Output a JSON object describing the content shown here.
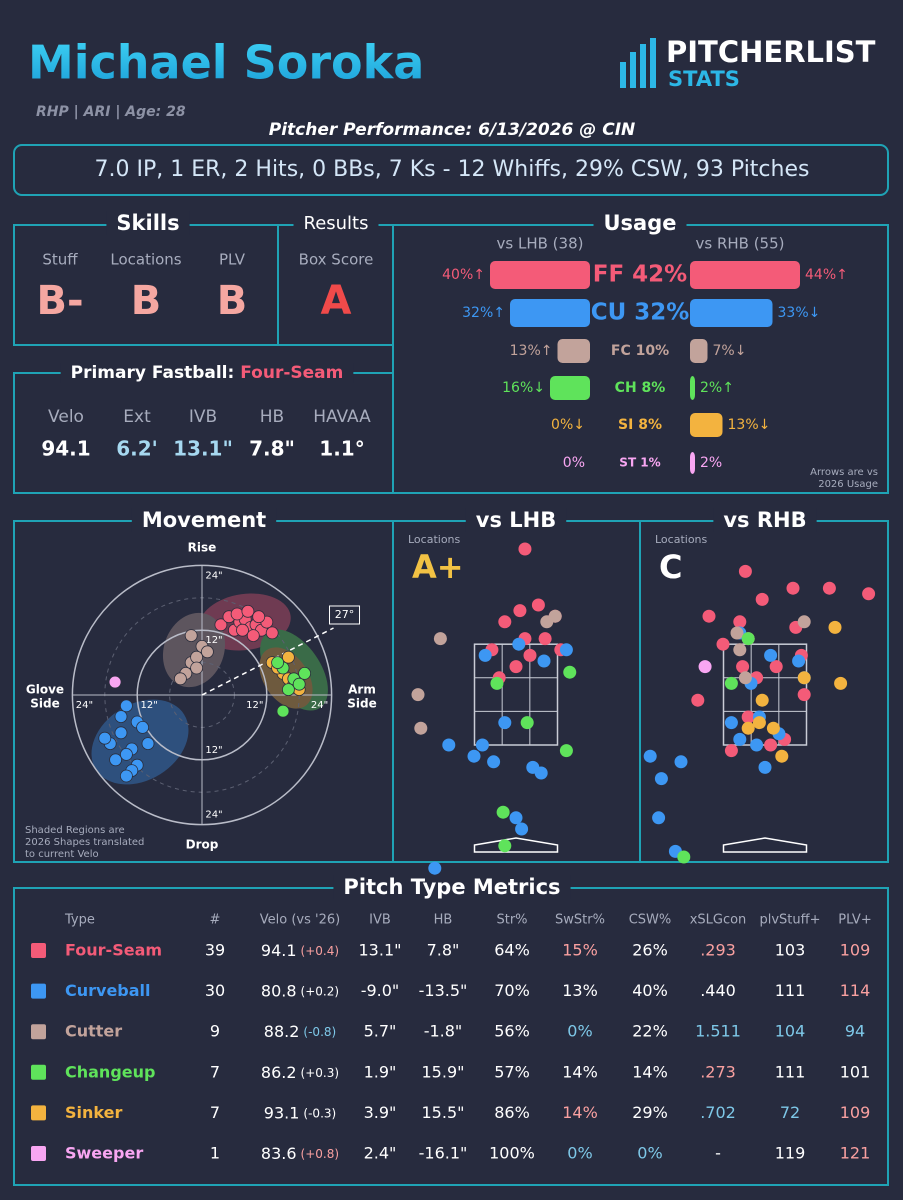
{
  "header": {
    "name": "Michael Soroka",
    "subtitle": "RHP | ARI | Age: 28",
    "logo_top": "PITCHERLIST",
    "logo_bottom": "STATS",
    "performance": "Pitcher Performance: 6/13/2026 @ CIN",
    "summary": "7.0 IP, 1 ER, 2 Hits, 0 BBs, 7 Ks - 12 Whiffs, 29% CSW, 93 Pitches"
  },
  "skills": {
    "title": "Skills",
    "grades": [
      {
        "label": "Stuff",
        "grade": "B-",
        "color": "#f5a7a1"
      },
      {
        "label": "Locations",
        "grade": "B",
        "color": "#f5a7a1"
      },
      {
        "label": "PLV",
        "grade": "B",
        "color": "#f5a7a1"
      }
    ]
  },
  "results": {
    "title": "Results",
    "label": "Box Score",
    "grade": "A",
    "color": "#f04a4a"
  },
  "fastball": {
    "title": "Primary Fastball:",
    "pitch": "Four-Seam",
    "pitch_color": "#f45b78",
    "metrics": [
      {
        "label": "Velo",
        "value": "94.1",
        "color": "#ffffff"
      },
      {
        "label": "Ext",
        "value": "6.2'",
        "color": "#a6d8f0"
      },
      {
        "label": "IVB",
        "value": "13.1\"",
        "color": "#a6d8f0"
      },
      {
        "label": "HB",
        "value": "7.8\"",
        "color": "#ffffff"
      },
      {
        "label": "HAVAA",
        "value": "1.1°",
        "color": "#ffffff"
      }
    ]
  },
  "usage": {
    "type": "bar",
    "title": "Usage",
    "categories": [
      "FF 42%",
      "CU 32%",
      "FC 10%",
      "CH 8%",
      "SI 8%",
      "ST 1%"
    ],
    "colors": [
      "#f45b78",
      "#3d97f3",
      "#c2a39b",
      "#5fe35b",
      "#f3b33f",
      "#f8a6f2"
    ],
    "series": [
      {
        "name": "vs LHB (38)",
        "values": [
          40,
          32,
          13,
          16,
          0,
          0
        ],
        "value_labels": [
          "40%↑",
          "32%↑",
          "13%↑",
          "16%↓",
          "0%↓",
          "0%"
        ]
      },
      {
        "name": "vs RHB (55)",
        "values": [
          44,
          33,
          7,
          2,
          13,
          2
        ],
        "value_labels": [
          "44%↑",
          "33%↓",
          "7%↓",
          "2%↑",
          "13%↓",
          "2%"
        ]
      }
    ],
    "note": [
      "Arrows are vs",
      "2026 Usage"
    ]
  },
  "movement": {
    "type": "scatter",
    "title": "Movement",
    "top": "Rise",
    "bottom": "Drop",
    "left": [
      "Glove",
      "Side"
    ],
    "right": [
      "Arm",
      "Side"
    ],
    "rings": [
      {
        "value": 12,
        "label": "12\""
      },
      {
        "value": 24,
        "label": "24\""
      }
    ],
    "arm_angle": {
      "value": 27,
      "label": "27°"
    },
    "note": [
      "Shaded Regions are",
      "2026 Shapes translated",
      "to current Velo"
    ],
    "series": [
      {
        "color": "#f45b78",
        "hb": [
          3.5,
          5,
          6,
          7,
          8,
          9,
          10,
          11,
          12,
          13,
          6.5,
          8.5,
          10.5,
          7.5,
          9.5
        ],
        "ivb": [
          13,
          14.5,
          12,
          13.5,
          14,
          12.5,
          13,
          12,
          13.5,
          11.5,
          15,
          15.5,
          14.5,
          12,
          11
        ]
      },
      {
        "color": "#3d97f3",
        "hb": [
          -14,
          -12,
          -15,
          -17,
          -13,
          -11,
          -16,
          -14,
          -12,
          -18,
          -13,
          -15,
          -10,
          -14
        ],
        "ivb": [
          -2,
          -5,
          -7,
          -9,
          -10,
          -6,
          -12,
          -11,
          -13,
          -8,
          -14,
          -4,
          -9,
          -15
        ]
      },
      {
        "color": "#c2a39b",
        "hb": [
          -3,
          -2,
          -1,
          0,
          -4,
          -2,
          1,
          -1
        ],
        "ivb": [
          4,
          6,
          7,
          9,
          3,
          11,
          8,
          5
        ]
      },
      {
        "color": "#f3b33f",
        "hb": [
          13,
          15,
          16,
          17,
          14,
          18,
          16
        ],
        "ivb": [
          6,
          4,
          3,
          2,
          5,
          1,
          7
        ]
      },
      {
        "color": "#5fe35b",
        "hb": [
          15,
          17,
          18,
          16,
          19,
          14,
          15
        ],
        "ivb": [
          5,
          3,
          2,
          1,
          4,
          6,
          -3
        ]
      },
      {
        "color": "#f8a6f2",
        "hb": [
          -16.1
        ],
        "ivb": [
          2.4
        ]
      }
    ]
  },
  "locations": {
    "lhb": {
      "title": "vs LHB",
      "label": "Locations",
      "grade": "A+",
      "grade_color": "#f2c244",
      "series": [
        {
          "color": "#f45b78",
          "x": [
            0.16,
            0.4,
            0.07,
            0.7,
            -0.2,
            0.16,
            0.52,
            -0.43,
            0.25,
            0.0,
            0.8,
            -0.3
          ],
          "z": [
            5.0,
            4.0,
            3.9,
            3.8,
            3.7,
            3.4,
            3.4,
            3.2,
            3.1,
            2.9,
            3.2,
            2.7
          ]
        },
        {
          "color": "#3d97f3",
          "x": [
            -0.55,
            0.05,
            0.5,
            -0.6,
            -0.75,
            -0.4,
            0.0,
            0.1,
            0.45,
            0.9,
            -1.2,
            -1.45,
            -0.2,
            0.3
          ],
          "z": [
            3.1,
            3.3,
            3.0,
            1.5,
            1.3,
            1.2,
            0.2,
            0.0,
            1.0,
            3.2,
            1.5,
            -0.7,
            1.9,
            1.1
          ]
        },
        {
          "color": "#c2a39b",
          "x": [
            0.7,
            -1.35,
            -1.75,
            -1.7,
            0.55
          ],
          "z": [
            3.8,
            3.4,
            2.4,
            1.8,
            3.7
          ]
        },
        {
          "color": "#5fe35b",
          "x": [
            -0.34,
            0.96,
            0.9,
            0.2,
            -0.23,
            -0.2
          ],
          "z": [
            2.6,
            2.8,
            1.4,
            1.9,
            0.3,
            -0.3
          ]
        }
      ]
    },
    "rhb": {
      "title": "vs RHB",
      "label": "Locations",
      "grade": "C",
      "grade_color": "#ffffff",
      "series": [
        {
          "color": "#f45b78",
          "x": [
            -0.35,
            -0.05,
            0.5,
            1.15,
            1.85,
            -1.0,
            -0.45,
            -0.3,
            0.55,
            0.65,
            -0.75,
            -0.4,
            -0.15,
            0.2,
            0.7,
            -1.2,
            -0.3,
            0.1,
            -0.6,
            0.35
          ],
          "z": [
            4.6,
            4.1,
            4.3,
            4.3,
            4.2,
            3.8,
            3.7,
            3.4,
            3.6,
            3.1,
            3.3,
            2.9,
            2.7,
            2.9,
            2.4,
            2.3,
            2.0,
            1.5,
            1.4,
            1.6
          ]
        },
        {
          "color": "#3d97f3",
          "x": [
            -0.45,
            0.6,
            0.7,
            -0.25,
            -0.1,
            0.25,
            -0.45,
            0.0,
            -0.15,
            -1.5,
            -2.05,
            -1.85,
            -1.9,
            -1.6,
            0.1,
            -0.6
          ],
          "z": [
            3.5,
            3.0,
            2.7,
            2.6,
            2.0,
            1.7,
            1.6,
            1.1,
            1.5,
            1.2,
            1.3,
            0.9,
            0.2,
            -0.4,
            3.1,
            1.9
          ]
        },
        {
          "color": "#c2a39b",
          "x": [
            -0.45,
            -0.35,
            0.7,
            -0.5
          ],
          "z": [
            3.2,
            2.7,
            3.7,
            3.5
          ]
        },
        {
          "color": "#5fe35b",
          "x": [
            -0.3,
            -0.6,
            -1.45
          ],
          "z": [
            3.4,
            2.6,
            -0.5
          ]
        },
        {
          "color": "#f3b33f",
          "x": [
            1.25,
            0.7,
            1.35,
            -0.05,
            -0.3,
            0.15,
            0.3,
            -0.1
          ],
          "z": [
            3.6,
            2.7,
            2.6,
            2.3,
            1.8,
            1.8,
            1.3,
            1.9
          ]
        },
        {
          "color": "#f8a6f2",
          "x": [
            -1.07
          ],
          "z": [
            2.9
          ]
        }
      ]
    }
  },
  "table": {
    "title": "Pitch Type Metrics",
    "columns": [
      "Type",
      "#",
      "Velo (vs '26)",
      "IVB",
      "HB",
      "Str%",
      "SwStr%",
      "CSW%",
      "xSLGcon",
      "plvStuff+",
      "PLV+"
    ],
    "rows": [
      {
        "color": "#f45b78",
        "cells": [
          "Four-Seam",
          "39",
          "94.1",
          "13.1\"",
          "7.8\"",
          "64%",
          "15%",
          "26%",
          ".293",
          "103",
          "109"
        ],
        "diff": "(+0.4)",
        "diff_color": "#f9a0a0",
        "cell_colors": [
          "#f45b78",
          "#fff",
          "#fff",
          "#fff",
          "#fff",
          "#fff",
          "#f9a0a0",
          "#fff",
          "#f9a0a0",
          "#fff",
          "#f9a0a0"
        ]
      },
      {
        "color": "#3d97f3",
        "cells": [
          "Curveball",
          "30",
          "80.8",
          "-9.0\"",
          "-13.5\"",
          "70%",
          "13%",
          "40%",
          ".440",
          "111",
          "114"
        ],
        "diff": "(+0.2)",
        "diff_color": "#ffffff",
        "cell_colors": [
          "#3d97f3",
          "#fff",
          "#fff",
          "#fff",
          "#fff",
          "#fff",
          "#fff",
          "#fff",
          "#fff",
          "#fff",
          "#f9a0a0"
        ]
      },
      {
        "color": "#c2a39b",
        "cells": [
          "Cutter",
          "9",
          "88.2",
          "5.7\"",
          "-1.8\"",
          "56%",
          "0%",
          "22%",
          "1.511",
          "104",
          "94"
        ],
        "diff": "(-0.8)",
        "diff_color": "#7ec8e8",
        "cell_colors": [
          "#c2a39b",
          "#fff",
          "#fff",
          "#fff",
          "#fff",
          "#fff",
          "#7ec8e8",
          "#fff",
          "#7ec8e8",
          "#7ec8e8",
          "#7ec8e8"
        ]
      },
      {
        "color": "#5fe35b",
        "cells": [
          "Changeup",
          "7",
          "86.2",
          "1.9\"",
          "15.9\"",
          "57%",
          "14%",
          "14%",
          ".273",
          "111",
          "101"
        ],
        "diff": "(+0.3)",
        "diff_color": "#ffffff",
        "cell_colors": [
          "#5fe35b",
          "#fff",
          "#fff",
          "#fff",
          "#fff",
          "#fff",
          "#fff",
          "#fff",
          "#f9a0a0",
          "#fff",
          "#fff"
        ]
      },
      {
        "color": "#f3b33f",
        "cells": [
          "Sinker",
          "7",
          "93.1",
          "3.9\"",
          "15.5\"",
          "86%",
          "14%",
          "29%",
          ".702",
          "72",
          "109"
        ],
        "diff": "(-0.3)",
        "diff_color": "#ffffff",
        "cell_colors": [
          "#f3b33f",
          "#fff",
          "#fff",
          "#fff",
          "#fff",
          "#fff",
          "#f9a0a0",
          "#fff",
          "#7ec8e8",
          "#7ec8e8",
          "#f9a0a0"
        ]
      },
      {
        "color": "#f8a6f2",
        "cells": [
          "Sweeper",
          "1",
          "83.6",
          "2.4\"",
          "-16.1\"",
          "100%",
          "0%",
          "0%",
          "-",
          "119",
          "121"
        ],
        "diff": "(+0.8)",
        "diff_color": "#f9a0a0",
        "cell_colors": [
          "#f8a6f2",
          "#fff",
          "#fff",
          "#fff",
          "#fff",
          "#fff",
          "#7ec8e8",
          "#7ec8e8",
          "#fff",
          "#fff",
          "#f9a0a0"
        ]
      }
    ]
  }
}
